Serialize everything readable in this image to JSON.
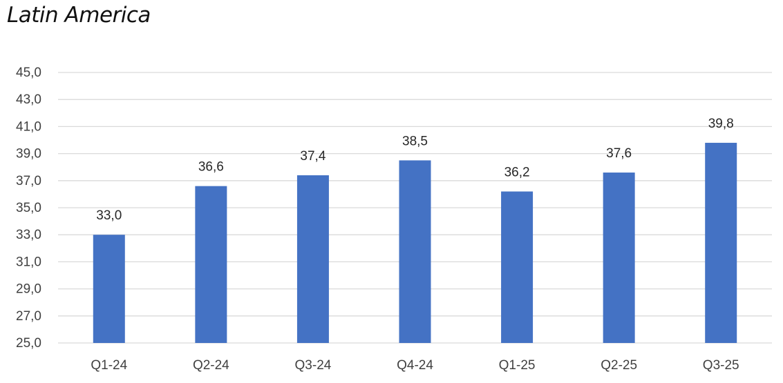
{
  "chart_data": {
    "type": "bar",
    "title": "Latin America",
    "xlabel": "",
    "ylabel": "",
    "categories": [
      "Q1-24",
      "Q2-24",
      "Q3-24",
      "Q4-24",
      "Q1-25",
      "Q2-25",
      "Q3-25"
    ],
    "values": [
      33.0,
      36.6,
      37.4,
      38.5,
      36.2,
      37.6,
      39.8
    ],
    "data_labels": [
      "33,0",
      "36,6",
      "37,4",
      "38,5",
      "36,2",
      "37,6",
      "39,8"
    ],
    "ylim": [
      25,
      45
    ],
    "y_ticks": [
      25,
      27,
      29,
      31,
      33,
      35,
      37,
      39,
      41,
      43,
      45
    ],
    "y_tick_labels": [
      "25,0",
      "27,0",
      "29,0",
      "31,0",
      "33,0",
      "35,0",
      "37,0",
      "39,0",
      "41,0",
      "43,0",
      "45,0"
    ],
    "grid": true,
    "legend": "none",
    "colors": {
      "bar": "#4472c4",
      "grid": "#d9d9d9",
      "text": "#404040"
    }
  }
}
